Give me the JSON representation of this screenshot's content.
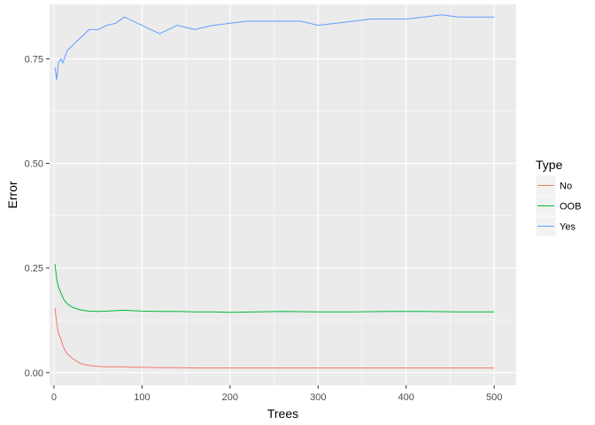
{
  "chart_data": {
    "type": "line",
    "xlabel": "Trees",
    "ylabel": "Error",
    "xlim": [
      -5,
      525
    ],
    "ylim": [
      -0.03,
      0.88
    ],
    "x_ticks": [
      0,
      100,
      200,
      300,
      400,
      500
    ],
    "x_tick_labels": [
      "0",
      "100",
      "200",
      "300",
      "400",
      "500"
    ],
    "y_ticks": [
      0.0,
      0.25,
      0.5,
      0.75
    ],
    "y_tick_labels": [
      "0.00",
      "0.25",
      "0.50",
      "0.75"
    ],
    "grid": true,
    "legend": {
      "title": "Type",
      "position": "right",
      "entries": [
        "No",
        "OOB",
        "Yes"
      ]
    },
    "series": [
      {
        "name": "No",
        "color": "#F8766D",
        "x": [
          1,
          3,
          5,
          8,
          10,
          12,
          15,
          18,
          20,
          25,
          30,
          35,
          40,
          50,
          60,
          70,
          80,
          90,
          100,
          120,
          140,
          160,
          180,
          200,
          230,
          260,
          300,
          340,
          380,
          420,
          460,
          500
        ],
        "y": [
          0.155,
          0.12,
          0.095,
          0.08,
          0.065,
          0.055,
          0.045,
          0.04,
          0.035,
          0.028,
          0.022,
          0.019,
          0.017,
          0.015,
          0.014,
          0.014,
          0.014,
          0.013,
          0.013,
          0.012,
          0.012,
          0.011,
          0.011,
          0.011,
          0.011,
          0.011,
          0.011,
          0.011,
          0.011,
          0.011,
          0.011,
          0.011
        ]
      },
      {
        "name": "OOB",
        "color": "#00BA38",
        "x": [
          1,
          3,
          5,
          8,
          10,
          12,
          15,
          18,
          20,
          25,
          30,
          35,
          40,
          50,
          60,
          70,
          80,
          90,
          100,
          120,
          140,
          160,
          180,
          200,
          230,
          260,
          300,
          340,
          380,
          420,
          460,
          500
        ],
        "y": [
          0.26,
          0.225,
          0.205,
          0.19,
          0.18,
          0.172,
          0.165,
          0.16,
          0.157,
          0.153,
          0.15,
          0.148,
          0.147,
          0.146,
          0.147,
          0.148,
          0.149,
          0.148,
          0.147,
          0.146,
          0.146,
          0.145,
          0.145,
          0.144,
          0.145,
          0.146,
          0.145,
          0.145,
          0.146,
          0.146,
          0.145,
          0.145
        ]
      },
      {
        "name": "Yes",
        "color": "#619CFF",
        "x": [
          1,
          3,
          5,
          8,
          10,
          15,
          20,
          25,
          30,
          40,
          50,
          60,
          70,
          80,
          90,
          100,
          110,
          120,
          130,
          140,
          160,
          180,
          200,
          220,
          250,
          280,
          300,
          320,
          340,
          360,
          380,
          400,
          420,
          440,
          460,
          480,
          500
        ],
        "y": [
          0.73,
          0.7,
          0.74,
          0.75,
          0.74,
          0.77,
          0.78,
          0.79,
          0.8,
          0.82,
          0.82,
          0.83,
          0.835,
          0.85,
          0.84,
          0.83,
          0.82,
          0.81,
          0.82,
          0.83,
          0.82,
          0.83,
          0.835,
          0.84,
          0.84,
          0.84,
          0.83,
          0.835,
          0.84,
          0.845,
          0.845,
          0.845,
          0.85,
          0.855,
          0.85,
          0.85,
          0.85
        ]
      }
    ]
  }
}
